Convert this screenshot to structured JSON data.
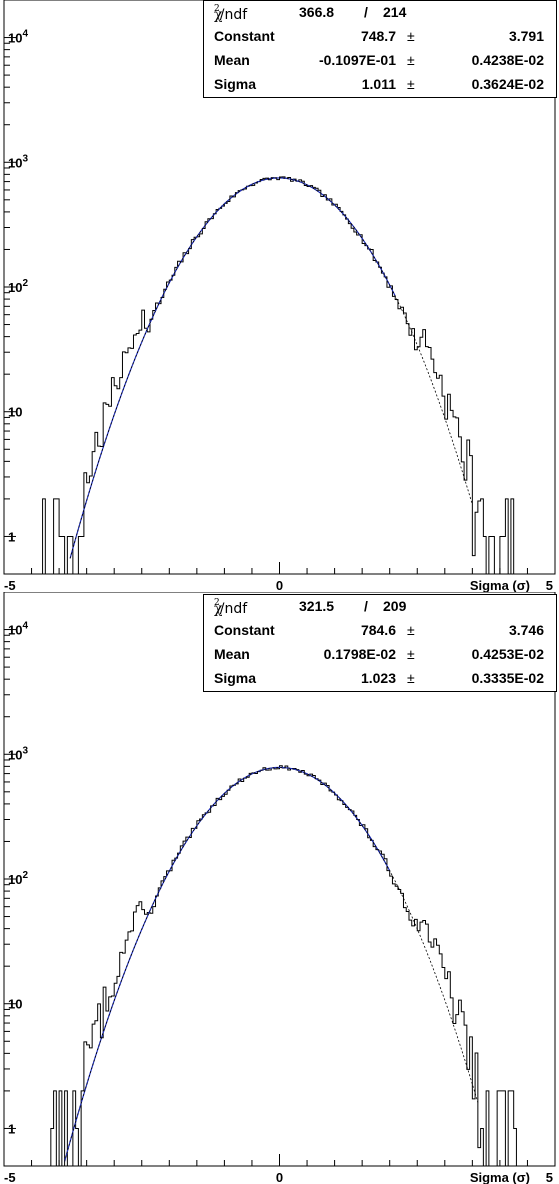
{
  "panels": [
    {
      "stats": {
        "chi_label": "χ",
        "chi_sup": "2",
        "ndf_label": "/ndf",
        "chi2": "366.8",
        "slash": "/",
        "ndf": "214",
        "rows": [
          {
            "label": "Constant",
            "value": "748.7",
            "pm": "±",
            "error": "3.791"
          },
          {
            "label": "Mean",
            "value": "-0.1097E-01",
            "pm": "±",
            "error": "0.4238E-02"
          },
          {
            "label": "Sigma",
            "value": "1.011",
            "pm": "±",
            "error": "0.3624E-02"
          }
        ]
      },
      "axis": {
        "x_ticks": [
          "-5",
          "0",
          "5"
        ],
        "x_title": "Sigma (σ)",
        "y_ticks": [
          {
            "base": "10",
            "exp": "4"
          },
          {
            "base": "10",
            "exp": "3"
          },
          {
            "base": "10",
            "exp": "2"
          },
          {
            "base": "10",
            "exp": ""
          },
          {
            "base": "1",
            "exp": ""
          }
        ]
      }
    },
    {
      "stats": {
        "chi_label": "χ",
        "chi_sup": "2",
        "ndf_label": "/ndf",
        "chi2": "321.5",
        "slash": "/",
        "ndf": "209",
        "rows": [
          {
            "label": "Constant",
            "value": "784.6",
            "pm": "±",
            "error": "3.746"
          },
          {
            "label": "Mean",
            "value": "0.1798E-02",
            "pm": "±",
            "error": "0.4253E-02"
          },
          {
            "label": "Sigma",
            "value": "1.023",
            "pm": "±",
            "error": "0.3335E-02"
          }
        ]
      },
      "axis": {
        "x_ticks": [
          "-5",
          "0",
          "5"
        ],
        "x_title": "Sigma (σ)",
        "y_ticks": [
          {
            "base": "10",
            "exp": "4"
          },
          {
            "base": "10",
            "exp": "3"
          },
          {
            "base": "10",
            "exp": "2"
          },
          {
            "base": "10",
            "exp": ""
          },
          {
            "base": "1",
            "exp": ""
          }
        ]
      }
    }
  ],
  "chart_data": [
    {
      "type": "line",
      "title": "",
      "xlabel": "Sigma (σ)",
      "ylabel": "",
      "xlim": [
        -5,
        5
      ],
      "ylim": [
        0.5,
        20000
      ],
      "yscale": "log",
      "series": [
        {
          "style": "histogram",
          "color": "#000000",
          "amplitude": 748.7,
          "mean": -0.011,
          "sigma": 1.011,
          "seed": 7
        },
        {
          "style": "solid",
          "color": "#1f2fbf",
          "amplitude": 748.7,
          "mean": -0.011,
          "sigma": 1.011,
          "x_range": [
            -3.8,
            2.1
          ]
        },
        {
          "style": "dashed",
          "color": "#1f2fbf",
          "amplitude": 748.7,
          "mean": -0.011,
          "sigma": 1.011,
          "x_range": [
            -3.8,
            3.5
          ]
        }
      ]
    },
    {
      "type": "line",
      "title": "",
      "xlabel": "Sigma (σ)",
      "ylabel": "",
      "xlim": [
        -5,
        5
      ],
      "ylim": [
        0.5,
        20000
      ],
      "yscale": "log",
      "series": [
        {
          "style": "histogram",
          "color": "#000000",
          "amplitude": 784.6,
          "mean": 0.0018,
          "sigma": 1.023,
          "seed": 13
        },
        {
          "style": "solid",
          "color": "#1f2fbf",
          "amplitude": 784.6,
          "mean": 0.0018,
          "sigma": 1.023,
          "x_range": [
            -3.9,
            2.0
          ]
        },
        {
          "style": "dashed",
          "color": "#1f2fbf",
          "amplitude": 784.6,
          "mean": 0.0018,
          "sigma": 1.023,
          "x_range": [
            -3.9,
            3.6
          ]
        }
      ]
    }
  ]
}
